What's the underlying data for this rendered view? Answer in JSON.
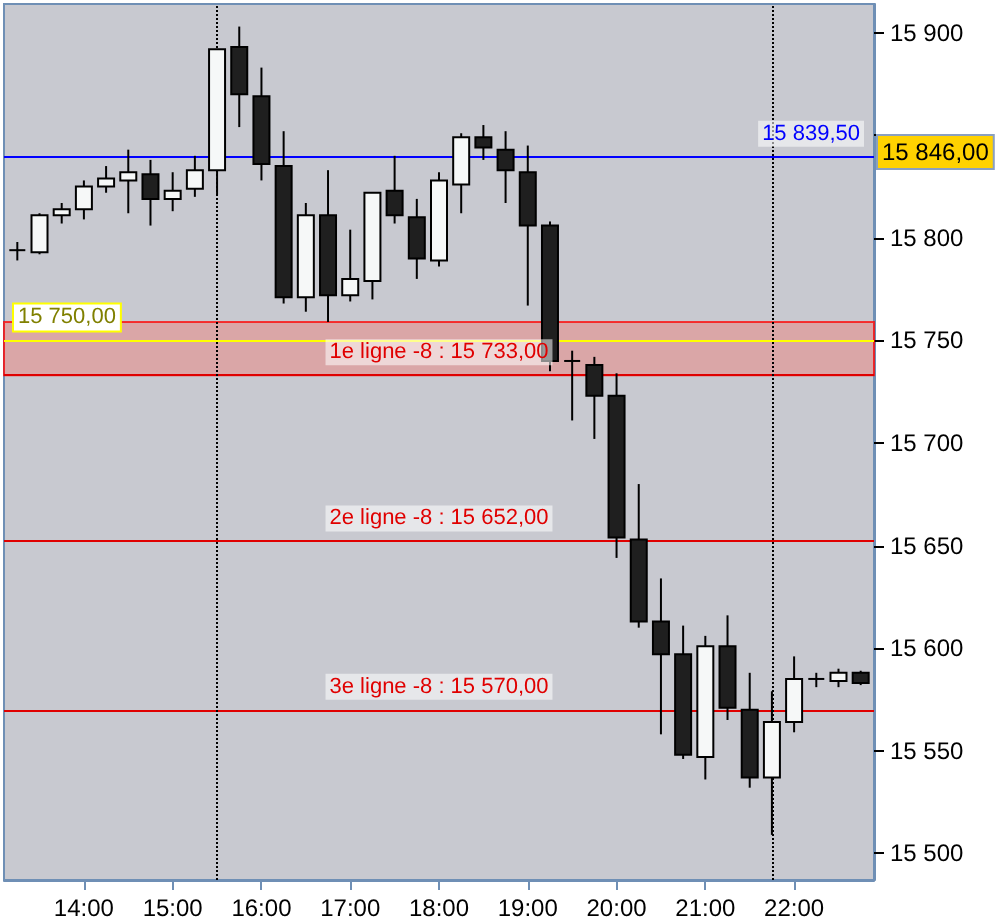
{
  "chart_data": {
    "type": "candlestick",
    "x": [
      13.25,
      13.5,
      13.75,
      14,
      14.25,
      14.5,
      14.75,
      15,
      15.25,
      15.5,
      15.75,
      16,
      16.25,
      16.5,
      16.75,
      17,
      17.25,
      17.5,
      17.75,
      18,
      18.25,
      18.5,
      18.75,
      19,
      19.25,
      19.5,
      19.75,
      20,
      20.25,
      20.5,
      20.75,
      21,
      21.25,
      21.5,
      21.75,
      22,
      22.25,
      22.5,
      22.75
    ],
    "ohlc": [
      [
        15794,
        15798,
        15789,
        15794
      ],
      [
        15793,
        15812,
        15792,
        15811
      ],
      [
        15811,
        15817,
        15807,
        15814
      ],
      [
        15814,
        15828,
        15809,
        15825
      ],
      [
        15825,
        15835,
        15822,
        15829
      ],
      [
        15828,
        15843,
        15812,
        15832
      ],
      [
        15831,
        15838,
        15806,
        15819
      ],
      [
        15819,
        15832,
        15813,
        15823
      ],
      [
        15824,
        15840,
        15820,
        15833
      ],
      [
        15833,
        15892,
        15821,
        15892
      ],
      [
        15893,
        15903,
        15854,
        15870
      ],
      [
        15869,
        15883,
        15828,
        15836
      ],
      [
        15835,
        15852,
        15768,
        15771
      ],
      [
        15771,
        15817,
        15764,
        15811
      ],
      [
        15811,
        15833,
        15759,
        15772
      ],
      [
        15772,
        15804,
        15769,
        15780
      ],
      [
        15779,
        15822,
        15770,
        15822
      ],
      [
        15823,
        15840,
        15807,
        15811
      ],
      [
        15810,
        15819,
        15780,
        15790
      ],
      [
        15789,
        15832,
        15786,
        15828
      ],
      [
        15826,
        15851,
        15812,
        15849
      ],
      [
        15849,
        15855,
        15838,
        15844
      ],
      [
        15843,
        15852,
        15817,
        15833
      ],
      [
        15832,
        15845,
        15767,
        15806
      ],
      [
        15806,
        15808,
        15735,
        15740
      ],
      [
        15740,
        15745,
        15711,
        15740
      ],
      [
        15738,
        15742,
        15702,
        15723
      ],
      [
        15723,
        15734,
        15644,
        15654
      ],
      [
        15653,
        15680,
        15610,
        15613
      ],
      [
        15613,
        15634,
        15558,
        15597
      ],
      [
        15597,
        15611,
        15546,
        15548
      ],
      [
        15547,
        15606,
        15536,
        15601
      ],
      [
        15601,
        15616,
        15565,
        15571
      ],
      [
        15570,
        15588,
        15532,
        15537
      ],
      [
        15537,
        15579,
        15509,
        15564
      ],
      [
        15564,
        15596,
        15559,
        15585
      ],
      [
        15585,
        15588,
        15581,
        15585
      ],
      [
        15584,
        15590,
        15581,
        15588
      ],
      [
        15588,
        15589,
        15582,
        15583
      ]
    ],
    "xlim": [
      13.1,
      22.9
    ],
    "xticks": [
      {
        "value": 14,
        "label": "14:00"
      },
      {
        "value": 15,
        "label": "15:00"
      },
      {
        "value": 16,
        "label": "16:00"
      },
      {
        "value": 17,
        "label": "17:00"
      },
      {
        "value": 18,
        "label": "18:00"
      },
      {
        "value": 19,
        "label": "19:00"
      },
      {
        "value": 20,
        "label": "20:00"
      },
      {
        "value": 21,
        "label": "21:00"
      },
      {
        "value": 22,
        "label": "22:00"
      }
    ],
    "ylim": [
      15487,
      15914
    ],
    "yticks": [
      {
        "value": 15500,
        "label": "15 500"
      },
      {
        "value": 15550,
        "label": "15 550"
      },
      {
        "value": 15600,
        "label": "15 600"
      },
      {
        "value": 15650,
        "label": "15 650"
      },
      {
        "value": 15700,
        "label": "15 700"
      },
      {
        "value": 15750,
        "label": "15 750"
      },
      {
        "value": 15800,
        "label": "15 800"
      },
      {
        "value": 15850,
        "label": null
      },
      {
        "value": 15900,
        "label": "15 900"
      }
    ],
    "ref_lines": [
      {
        "axis": "y",
        "value": 15750,
        "label": "15 750,00",
        "color": "#ffff00"
      },
      {
        "axis": "y",
        "value": 15733,
        "label": "1e ligne -8 : 15 733,00",
        "color": "#e00000"
      },
      {
        "axis": "y",
        "value": 15652,
        "label": "2e ligne -8 : 15 652,00",
        "color": "#e00000"
      },
      {
        "axis": "y",
        "value": 15570,
        "label": "3e ligne -8 : 15 570,00",
        "color": "#e00000"
      },
      {
        "axis": "y",
        "value": 15839.5,
        "label": "15 839,50",
        "color": "#0000ff"
      },
      {
        "axis": "x",
        "value": 15.5,
        "color": "#000000",
        "line_style": "dotted"
      },
      {
        "axis": "x",
        "value": 21.75,
        "color": "#000000",
        "line_style": "dotted"
      }
    ],
    "bands": [
      {
        "axis": "y",
        "from": 15733,
        "to": 15759,
        "color": "#e09a9a"
      }
    ],
    "annotations": [
      "15 846,00"
    ],
    "grid": false
  }
}
